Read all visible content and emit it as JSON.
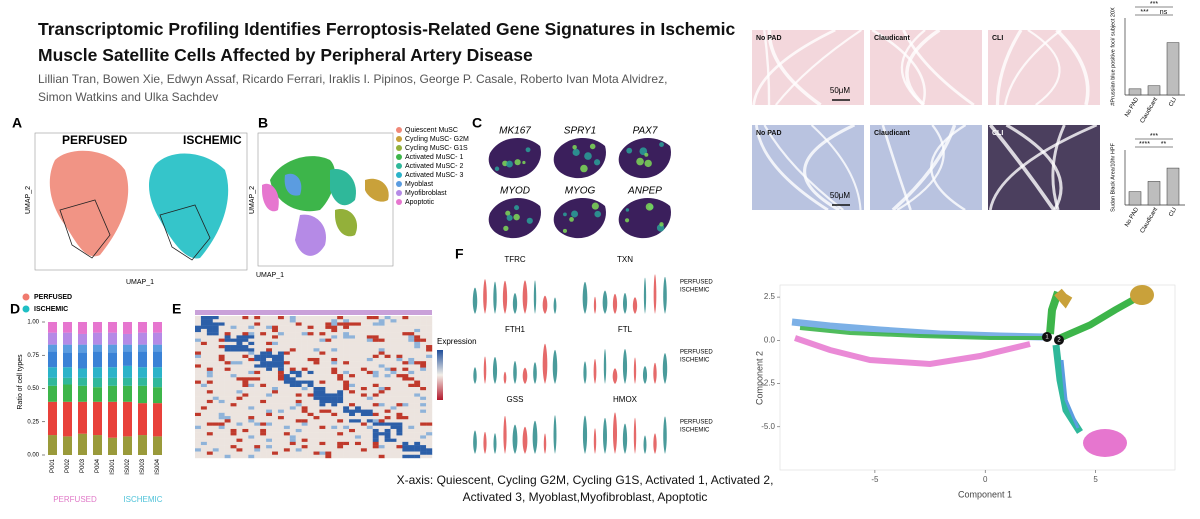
{
  "header": {
    "title": "Transcriptomic Profiling Identifies Ferroptosis-Related Gene Signatures in Ischemic Muscle Satellite Cells Affected by Peripheral Artery Disease",
    "authors": "Lillian Tran, Bowen Xie, Edwyn Assaf, Ricardo Ferrari, Iraklis I. Pipinos, George P. Casale, Roberto Ivan Mota Alvidrez, Simon Watkins and Ulka Sachdev"
  },
  "panel_a": {
    "label": "A",
    "groups": [
      "PERFUSED",
      "ISCHEMIC"
    ],
    "x_label": "UMAP_1",
    "y_label": "UMAP_2"
  },
  "panel_b": {
    "label": "B",
    "x_label": "UMAP_1",
    "y_label": "UMAP_2",
    "legend": [
      {
        "name": "Quiescent MuSC",
        "color": "#f08878"
      },
      {
        "name": "Cycling MuSC- G2M",
        "color": "#c9a13a"
      },
      {
        "name": "Cycling MuSC- G1S",
        "color": "#93b03a"
      },
      {
        "name": "Activated MuSC- 1",
        "color": "#3db54a"
      },
      {
        "name": "Activated MuSC- 2",
        "color": "#2fb89a"
      },
      {
        "name": "Activated MuSC- 3",
        "color": "#2bb3c9"
      },
      {
        "name": "Myoblast",
        "color": "#5b9ce0"
      },
      {
        "name": "Myofibroblast",
        "color": "#b58ae6"
      },
      {
        "name": "Apoptotic",
        "color": "#e676cf"
      }
    ]
  },
  "panel_c": {
    "label": "C",
    "genes": [
      "MK167",
      "SPRY1",
      "PAX7",
      "MYOD",
      "MYOG",
      "ANPEP"
    ]
  },
  "panel_d": {
    "label": "D",
    "legend": [
      {
        "name": "PERFUSED",
        "color": "#f07a6e"
      },
      {
        "name": "ISCHEMIC",
        "color": "#1fbfc4"
      }
    ],
    "y_label": "Ratio of cell types",
    "ylim": [
      0,
      1
    ],
    "yticks": [
      {
        "value": 0,
        "label": "0.00"
      },
      0.25,
      {
        "value": 0.5,
        "label": "0.50"
      },
      0.75,
      {
        "value": 1,
        "label": "1.00"
      }
    ],
    "segment_colors": [
      "#9a9a3a",
      "#e8413a",
      "#3db54a",
      "#2fb89a",
      "#2bb3c9",
      "#3a82d6",
      "#5b9ce0",
      "#b58ae6",
      "#e676cf"
    ],
    "bars": [
      {
        "label": "P001",
        "segments": [
          0.15,
          0.25,
          0.12,
          0.06,
          0.08,
          0.12,
          0.05,
          0.09,
          0.08
        ]
      },
      {
        "label": "P002",
        "segments": [
          0.14,
          0.26,
          0.13,
          0.05,
          0.08,
          0.11,
          0.06,
          0.09,
          0.08
        ]
      },
      {
        "label": "P003",
        "segments": [
          0.16,
          0.24,
          0.12,
          0.06,
          0.07,
          0.12,
          0.06,
          0.08,
          0.09
        ]
      },
      {
        "label": "P004",
        "segments": [
          0.15,
          0.25,
          0.11,
          0.07,
          0.08,
          0.12,
          0.05,
          0.09,
          0.08
        ]
      },
      {
        "label": "IS001",
        "segments": [
          0.13,
          0.27,
          0.12,
          0.06,
          0.08,
          0.11,
          0.06,
          0.09,
          0.08
        ]
      },
      {
        "label": "IS002",
        "segments": [
          0.14,
          0.26,
          0.12,
          0.06,
          0.09,
          0.11,
          0.05,
          0.08,
          0.09
        ]
      },
      {
        "label": "IS003",
        "segments": [
          0.15,
          0.24,
          0.13,
          0.06,
          0.08,
          0.12,
          0.05,
          0.09,
          0.08
        ]
      },
      {
        "label": "IS004",
        "segments": [
          0.14,
          0.25,
          0.12,
          0.07,
          0.08,
          0.12,
          0.05,
          0.09,
          0.08
        ]
      }
    ],
    "group_labels": [
      {
        "name": "PERFUSED",
        "color": "#e07ac8"
      },
      {
        "name": "ISCHEMIC",
        "color": "#4fc3d9"
      }
    ]
  },
  "panel_e": {
    "label": "E",
    "legend_title": "Expression"
  },
  "panel_f": {
    "label": "F",
    "genes": [
      "TFRC",
      "TXN",
      "FTH1",
      "FTL",
      "GSS",
      "HMOX"
    ],
    "legend": [
      "PERFUSED",
      "ISCHEMIC"
    ]
  },
  "caption": "X-axis: Quiescent, Cycling G2M, Cycling G1S, Activated 1, Activated 2, Activated 3, Myoblast,Myofibroblast, Apoptotic",
  "histology": {
    "conditions": [
      "No PAD",
      "Claudicant",
      "CLI"
    ],
    "scale_bar": "50μM",
    "prussian": {
      "y_label": "#Prussian blue positive foci/ subject 20X",
      "values": [
        1.2,
        1.8,
        10.2
      ],
      "ylim": [
        0,
        15
      ],
      "significance": [
        "***",
        "ns",
        "***"
      ]
    },
    "sudan": {
      "y_label": "Sudan Black Area/10hr HPF",
      "values": [
        17,
        30,
        47
      ],
      "ylim": [
        0,
        70
      ],
      "significance": [
        "****",
        "**",
        "***"
      ]
    }
  },
  "trajectory": {
    "x_label": "Component 1",
    "y_label": "Component 2",
    "xlim": [
      -9.3,
      8.6
    ],
    "ylim": [
      -7.5,
      3.2
    ],
    "xticks": [
      -5,
      0,
      5
    ],
    "yticks": [
      2.5,
      {
        "value": 0,
        "label": "0.0"
      },
      -2.5,
      {
        "value": -5,
        "label": "-5.0"
      }
    ],
    "nodes": [
      "1",
      "2"
    ]
  }
}
